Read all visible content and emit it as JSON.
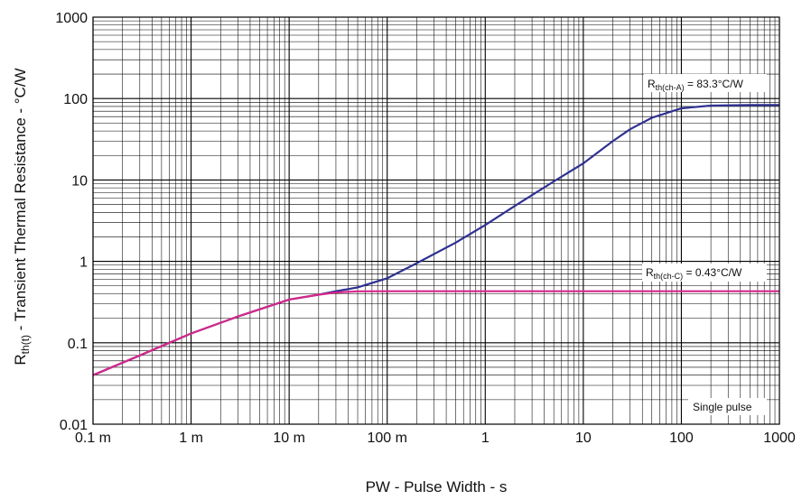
{
  "chart_data": {
    "type": "line",
    "xscale": "log",
    "yscale": "log",
    "xlim": [
      0.0001,
      1000
    ],
    "ylim": [
      0.01,
      1000
    ],
    "grid": true,
    "xlabel": "PW - Pulse Width - s",
    "ylabel_main": "R",
    "ylabel_sub": "th(t)",
    "ylabel_rest": " - Transient Thermal Resistance - °C/W",
    "x_tick_labels": [
      "0.1 m",
      "1 m",
      "10 m",
      "100 m",
      "1",
      "10",
      "100",
      "1000"
    ],
    "y_tick_labels": [
      "0.01",
      "0.1",
      "1",
      "10",
      "100",
      "1000"
    ],
    "series": [
      {
        "color": "#2e3192",
        "x": [
          0.0001,
          0.0003,
          0.001,
          0.003,
          0.01,
          0.02,
          0.03,
          0.05,
          0.1,
          0.2,
          0.5,
          1,
          2,
          5,
          10,
          20,
          30,
          50,
          100,
          200,
          500,
          1000
        ],
        "y": [
          0.04,
          0.07,
          0.13,
          0.21,
          0.34,
          0.39,
          0.43,
          0.48,
          0.62,
          0.95,
          1.7,
          2.8,
          4.8,
          9.6,
          16,
          30,
          42,
          58,
          76,
          82,
          83.3,
          83.3
        ]
      },
      {
        "color": "#d4278a",
        "x": [
          0.0001,
          0.0003,
          0.001,
          0.003,
          0.01,
          0.02,
          0.03,
          0.05,
          0.1,
          1,
          10,
          100,
          1000
        ],
        "y": [
          0.04,
          0.07,
          0.13,
          0.21,
          0.34,
          0.39,
          0.415,
          0.428,
          0.43,
          0.43,
          0.43,
          0.43,
          0.43
        ]
      }
    ],
    "annotations": [
      {
        "main": "R",
        "sub": "th(ch-A)",
        "rest": " = 83.3°C/W"
      },
      {
        "main": "R",
        "sub": "th(ch-C)",
        "rest": " = 0.43°C/W"
      },
      {
        "text": "Single pulse"
      }
    ]
  }
}
